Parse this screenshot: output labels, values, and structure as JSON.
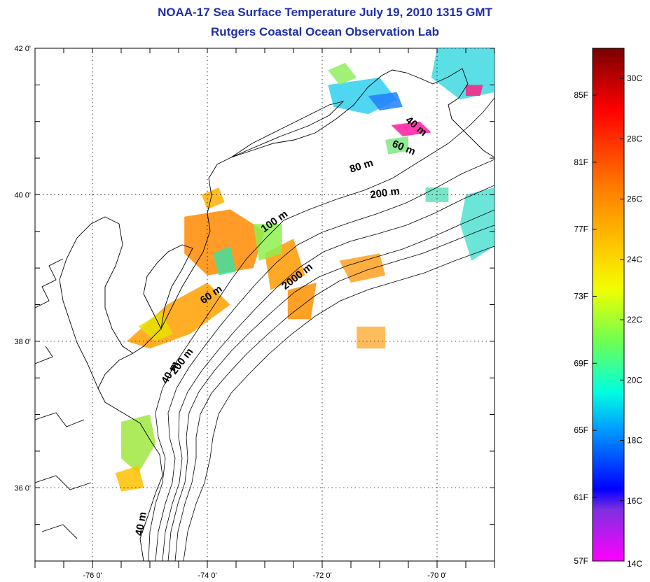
{
  "title": {
    "line1": "NOAA-17 Sea Surface Temperature July 19, 2010 1315 GMT",
    "line2": "Rutgers Coastal Ocean Observation Lab"
  },
  "axes": {
    "lon_range": [
      -77,
      -69
    ],
    "lat_range": [
      35,
      42
    ],
    "lon_ticks": [
      {
        "value": -76,
        "label": "-76 0'"
      },
      {
        "value": -74,
        "label": "-74 0'"
      },
      {
        "value": -72,
        "label": "-72 0'"
      },
      {
        "value": -70,
        "label": "-70 0'"
      }
    ],
    "lat_ticks": [
      {
        "value": 42,
        "label": "42 0'"
      },
      {
        "value": 40,
        "label": "40 0'"
      },
      {
        "value": 38,
        "label": "38 0'"
      },
      {
        "value": 36,
        "label": "36 0'"
      }
    ]
  },
  "depth_labels": [
    {
      "text": "40 m",
      "lon": -70.4,
      "lat": 40.9,
      "angle": 40
    },
    {
      "text": "60 m",
      "lon": -70.6,
      "lat": 40.6,
      "angle": 22
    },
    {
      "text": "80 m",
      "lon": -71.3,
      "lat": 40.35,
      "angle": -18
    },
    {
      "text": "200 m",
      "lon": -70.9,
      "lat": 39.98,
      "angle": -8
    },
    {
      "text": "100 m",
      "lon": -72.8,
      "lat": 39.6,
      "angle": -35
    },
    {
      "text": "2000 m",
      "lon": -72.4,
      "lat": 38.85,
      "angle": -38
    },
    {
      "text": "60 m",
      "lon": -73.9,
      "lat": 38.6,
      "angle": -35
    },
    {
      "text": "200 m",
      "lon": -74.4,
      "lat": 37.7,
      "angle": -52
    },
    {
      "text": "40 m",
      "lon": -74.6,
      "lat": 37.55,
      "angle": -60
    },
    {
      "text": "40 m",
      "lon": -75.1,
      "lat": 35.5,
      "angle": -80
    }
  ],
  "colorbar": {
    "range_c": [
      14,
      31
    ],
    "fahrenheit_labels": [
      "85F",
      "81F",
      "77F",
      "73F",
      "69F",
      "65F",
      "61F",
      "57F"
    ],
    "celsius_labels": [
      "30C",
      "28C",
      "26C",
      "24C",
      "22C",
      "20C",
      "18C",
      "16C",
      "14C"
    ],
    "stops": [
      {
        "offset": 0.0,
        "color": "#7a0000"
      },
      {
        "offset": 0.12,
        "color": "#ff0000"
      },
      {
        "offset": 0.27,
        "color": "#ff7a00"
      },
      {
        "offset": 0.4,
        "color": "#ffd000"
      },
      {
        "offset": 0.47,
        "color": "#f0ff00"
      },
      {
        "offset": 0.57,
        "color": "#70ff50"
      },
      {
        "offset": 0.67,
        "color": "#00ffe0"
      },
      {
        "offset": 0.74,
        "color": "#00a0ff"
      },
      {
        "offset": 0.86,
        "color": "#0000ff"
      },
      {
        "offset": 0.9,
        "color": "#7f2fe0"
      },
      {
        "offset": 1.0,
        "color": "#ff00ff"
      }
    ]
  },
  "sst_patches": [
    {
      "name": "nj-coastal-warm",
      "color": "#ff8a00",
      "points": [
        [
          -74.4,
          39.7
        ],
        [
          -73.6,
          39.8
        ],
        [
          -73.0,
          39.5
        ],
        [
          -73.2,
          39.0
        ],
        [
          -74.0,
          38.9
        ],
        [
          -74.4,
          39.2
        ]
      ]
    },
    {
      "name": "delmarva-warm",
      "color": "#ffa000",
      "points": [
        [
          -75.4,
          38.0
        ],
        [
          -74.7,
          38.5
        ],
        [
          -74.0,
          38.8
        ],
        [
          -73.6,
          38.5
        ],
        [
          -74.3,
          38.1
        ],
        [
          -75.0,
          37.9
        ]
      ]
    },
    {
      "name": "shelf-yellow",
      "color": "#e8e000",
      "points": [
        [
          -75.2,
          38.2
        ],
        [
          -74.9,
          38.0
        ],
        [
          -74.6,
          38.1
        ],
        [
          -74.8,
          38.4
        ]
      ]
    },
    {
      "name": "nj-north-warm",
      "color": "#ffb000",
      "points": [
        [
          -74.1,
          40.0
        ],
        [
          -73.8,
          40.1
        ],
        [
          -73.7,
          39.9
        ],
        [
          -74.0,
          39.8
        ]
      ]
    },
    {
      "name": "shelf-break-orange",
      "color": "#ff9a00",
      "points": [
        [
          -73.0,
          39.2
        ],
        [
          -72.5,
          39.4
        ],
        [
          -72.3,
          38.9
        ],
        [
          -72.9,
          38.7
        ]
      ]
    },
    {
      "name": "offshore-orange",
      "color": "#ff9000",
      "points": [
        [
          -72.6,
          38.7
        ],
        [
          -72.1,
          38.8
        ],
        [
          -72.2,
          38.3
        ],
        [
          -72.6,
          38.3
        ]
      ]
    },
    {
      "name": "offshore-eddy",
      "color": "#ffa020",
      "points": [
        [
          -71.7,
          39.1
        ],
        [
          -71.0,
          39.2
        ],
        [
          -70.9,
          38.9
        ],
        [
          -71.5,
          38.8
        ]
      ]
    },
    {
      "name": "offshore-small",
      "color": "#ffb040",
      "points": [
        [
          -71.4,
          38.2
        ],
        [
          -70.9,
          38.2
        ],
        [
          -70.9,
          37.9
        ],
        [
          -71.4,
          37.9
        ]
      ]
    },
    {
      "name": "shelf-green",
      "color": "#8ef050",
      "points": [
        [
          -73.2,
          39.6
        ],
        [
          -72.7,
          39.6
        ],
        [
          -72.7,
          39.2
        ],
        [
          -73.1,
          39.1
        ]
      ]
    },
    {
      "name": "mid-shelf-cool",
      "color": "#40e0a0",
      "points": [
        [
          -73.9,
          39.2
        ],
        [
          -73.6,
          39.3
        ],
        [
          -73.5,
          38.95
        ],
        [
          -73.8,
          38.9
        ]
      ]
    },
    {
      "name": "nc-coastal-green",
      "color": "#a0e840",
      "points": [
        [
          -75.5,
          36.9
        ],
        [
          -75.0,
          37.0
        ],
        [
          -74.9,
          36.6
        ],
        [
          -75.2,
          36.2
        ],
        [
          -75.5,
          36.4
        ]
      ]
    },
    {
      "name": "nc-south-orange",
      "color": "#ffc000",
      "points": [
        [
          -75.6,
          36.2
        ],
        [
          -75.2,
          36.3
        ],
        [
          -75.1,
          36.0
        ],
        [
          -75.5,
          35.95
        ]
      ]
    },
    {
      "name": "li-sound-cyan",
      "color": "#30d0f0",
      "points": [
        [
          -71.9,
          41.5
        ],
        [
          -71.0,
          41.6
        ],
        [
          -70.7,
          41.3
        ],
        [
          -71.2,
          41.1
        ],
        [
          -71.8,
          41.2
        ]
      ]
    },
    {
      "name": "li-green",
      "color": "#90ee60",
      "points": [
        [
          -71.9,
          41.7
        ],
        [
          -71.6,
          41.8
        ],
        [
          -71.4,
          41.6
        ],
        [
          -71.7,
          41.5
        ]
      ]
    },
    {
      "name": "ne-blue",
      "color": "#2080ff",
      "points": [
        [
          -71.2,
          41.35
        ],
        [
          -70.7,
          41.4
        ],
        [
          -70.6,
          41.2
        ],
        [
          -71.0,
          41.15
        ]
      ]
    },
    {
      "name": "ne-magenta",
      "color": "#ff1aa0",
      "points": [
        [
          -70.8,
          40.95
        ],
        [
          -70.3,
          41.0
        ],
        [
          -70.1,
          40.85
        ],
        [
          -70.6,
          40.8
        ]
      ]
    },
    {
      "name": "cape-cyan",
      "color": "#40d8e0",
      "points": [
        [
          -70.0,
          42.0
        ],
        [
          -69.0,
          42.0
        ],
        [
          -69.0,
          41.4
        ],
        [
          -69.6,
          41.3
        ],
        [
          -70.1,
          41.6
        ]
      ]
    },
    {
      "name": "cape-magenta",
      "color": "#ff2080",
      "points": [
        [
          -69.5,
          41.5
        ],
        [
          -69.2,
          41.5
        ],
        [
          -69.25,
          41.35
        ],
        [
          -69.5,
          41.35
        ]
      ]
    },
    {
      "name": "georges-cyan",
      "color": "#50e0d0",
      "points": [
        [
          -69.5,
          40.0
        ],
        [
          -69.0,
          40.1
        ],
        [
          -69.0,
          39.3
        ],
        [
          -69.4,
          39.1
        ],
        [
          -69.6,
          39.6
        ]
      ]
    },
    {
      "name": "ne-shelf-green",
      "color": "#80e880",
      "points": [
        [
          -70.9,
          40.75
        ],
        [
          -70.5,
          40.8
        ],
        [
          -70.5,
          40.6
        ],
        [
          -70.85,
          40.55
        ]
      ]
    },
    {
      "name": "mid-shelf-cyan",
      "color": "#60e0c0",
      "points": [
        [
          -70.2,
          40.1
        ],
        [
          -69.8,
          40.1
        ],
        [
          -69.8,
          39.9
        ],
        [
          -70.2,
          39.9
        ]
      ]
    }
  ]
}
